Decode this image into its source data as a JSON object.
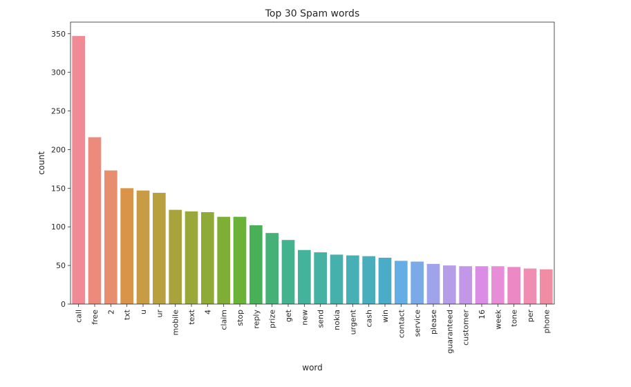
{
  "chart_data": {
    "type": "bar",
    "title": "Top 30 Spam words",
    "xlabel": "word",
    "ylabel": "count",
    "ylim": [
      0,
      365
    ],
    "yticks": [
      0,
      50,
      100,
      150,
      200,
      250,
      300,
      350
    ],
    "grid": false,
    "categories": [
      "call",
      "free",
      "2",
      "txt",
      "u",
      "ur",
      "mobile",
      "text",
      "4",
      "claim",
      "stop",
      "reply",
      "prize",
      "get",
      "new",
      "send",
      "nokia",
      "urgent",
      "cash",
      "win",
      "contact",
      "service",
      "please",
      "guaranteed",
      "customer",
      "16",
      "week",
      "tone",
      "per",
      "phone"
    ],
    "values": [
      347,
      216,
      173,
      150,
      147,
      144,
      122,
      120,
      119,
      113,
      113,
      102,
      92,
      83,
      70,
      67,
      64,
      63,
      62,
      60,
      56,
      55,
      52,
      50,
      49,
      49,
      49,
      48,
      46,
      45
    ],
    "colors": [
      "#f08a94",
      "#ec8a7b",
      "#e68e6d",
      "#d99449",
      "#c89b44",
      "#b9a03e",
      "#a9a33c",
      "#99a839",
      "#8eab38",
      "#7fae36",
      "#6bb238",
      "#48b158",
      "#45b177",
      "#44b28c",
      "#43b39c",
      "#45b2a4",
      "#46b1ac",
      "#47b0b4",
      "#48aebc",
      "#4aacc7",
      "#65aee5",
      "#7aaae7",
      "#9fa3e9",
      "#b69de8",
      "#c397e8",
      "#db8de5",
      "#e88ed8",
      "#ec89c5",
      "#f08db3",
      "#f08ca4"
    ]
  }
}
